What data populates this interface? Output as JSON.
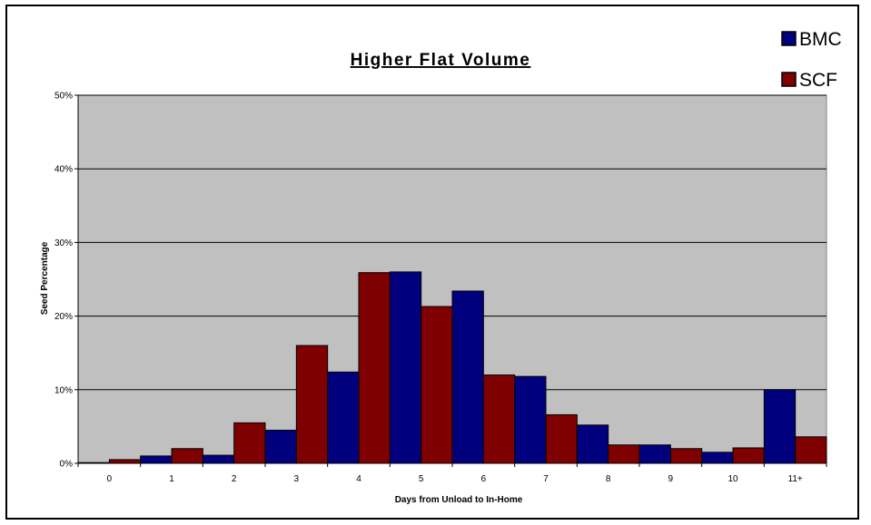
{
  "chart_data": {
    "type": "bar",
    "title": "Higher Flat Volume",
    "xlabel": "Days from Unload to In-Home",
    "ylabel": "Seed Percentage",
    "ylim": [
      0,
      50
    ],
    "yticks": [
      "0%",
      "10%",
      "20%",
      "30%",
      "40%",
      "50%"
    ],
    "grid": true,
    "legend_position": "top-right",
    "categories": [
      "0",
      "1",
      "2",
      "3",
      "4",
      "5",
      "6",
      "7",
      "8",
      "9",
      "10",
      "11+"
    ],
    "series": [
      {
        "name": "BMC",
        "color": "#00007f",
        "values": [
          0.1,
          1.0,
          1.1,
          4.5,
          12.4,
          26.0,
          23.4,
          11.8,
          5.2,
          2.5,
          1.5,
          10.0
        ]
      },
      {
        "name": "SCF",
        "color": "#7f0000",
        "values": [
          0.5,
          2.0,
          5.5,
          16.0,
          25.9,
          21.3,
          12.0,
          6.6,
          2.5,
          2.0,
          2.1,
          3.6
        ]
      }
    ],
    "plot_background": "#c0c0c0"
  }
}
